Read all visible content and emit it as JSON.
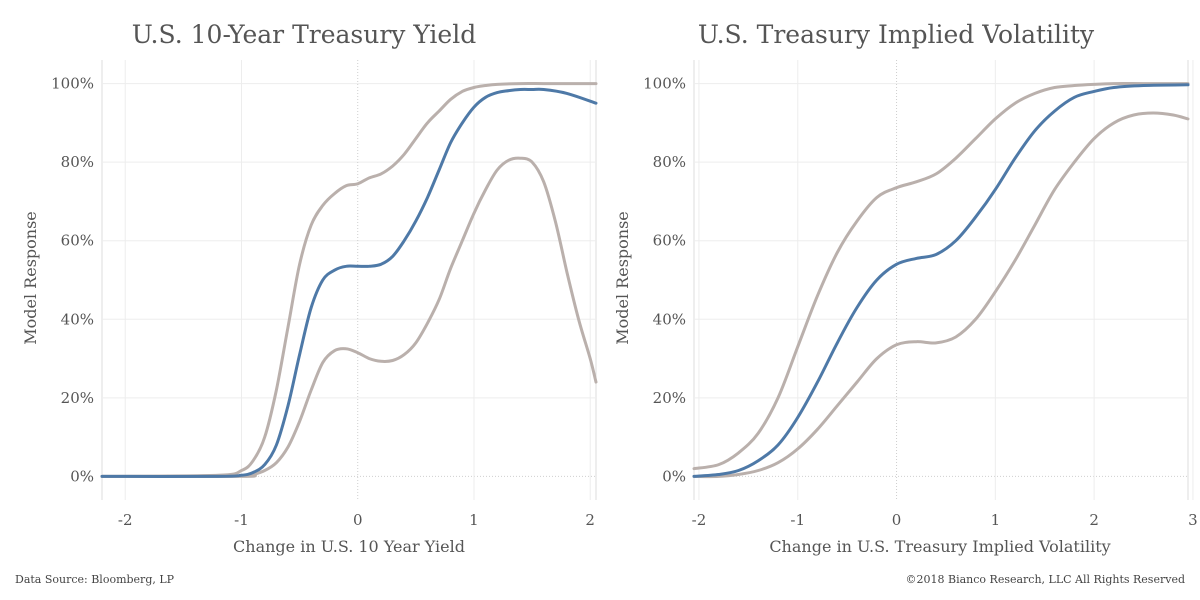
{
  "chart_data": [
    {
      "type": "line",
      "title": "U.S. 10-Year Treasury Yield",
      "xlabel": "Change in U.S. 10 Year Yield",
      "ylabel": "Model Response",
      "xlim": [
        -2.2,
        2.05
      ],
      "ylim": [
        -0.06,
        1.06
      ],
      "xticks": [
        -2,
        -1,
        0,
        1,
        2
      ],
      "xtick_labels": [
        "-2",
        "-1",
        "0",
        "1",
        "2"
      ],
      "yticks": [
        0,
        0.2,
        0.4,
        0.6,
        0.8,
        1.0
      ],
      "ytick_labels": [
        "0%",
        "20%",
        "40%",
        "60%",
        "80%",
        "100%"
      ],
      "grid": true,
      "series": [
        {
          "role": "upper",
          "color": "#bab0ac",
          "x": [
            -2.2,
            -1.2,
            -1.0,
            -0.9,
            -0.8,
            -0.7,
            -0.6,
            -0.5,
            -0.4,
            -0.3,
            -0.2,
            -0.1,
            0.0,
            0.1,
            0.2,
            0.3,
            0.4,
            0.5,
            0.6,
            0.7,
            0.8,
            0.9,
            1.0,
            1.1,
            1.2,
            1.4,
            1.6,
            1.8,
            2.05
          ],
          "y": [
            0.0,
            0.003,
            0.015,
            0.04,
            0.1,
            0.22,
            0.38,
            0.54,
            0.64,
            0.69,
            0.72,
            0.74,
            0.745,
            0.76,
            0.77,
            0.79,
            0.82,
            0.86,
            0.9,
            0.93,
            0.96,
            0.98,
            0.99,
            0.995,
            0.998,
            1.0,
            1.0,
            1.0,
            1.0
          ]
        },
        {
          "role": "median",
          "color": "#4e79a7",
          "x": [
            -2.2,
            -1.2,
            -1.0,
            -0.9,
            -0.8,
            -0.7,
            -0.6,
            -0.5,
            -0.4,
            -0.3,
            -0.2,
            -0.1,
            0.0,
            0.1,
            0.2,
            0.3,
            0.4,
            0.5,
            0.6,
            0.7,
            0.8,
            0.9,
            1.0,
            1.1,
            1.2,
            1.3,
            1.4,
            1.5,
            1.6,
            1.8,
            2.05
          ],
          "y": [
            0.0,
            0.0,
            0.003,
            0.01,
            0.03,
            0.08,
            0.18,
            0.31,
            0.43,
            0.5,
            0.525,
            0.535,
            0.535,
            0.535,
            0.54,
            0.56,
            0.6,
            0.65,
            0.71,
            0.78,
            0.85,
            0.9,
            0.94,
            0.965,
            0.977,
            0.982,
            0.985,
            0.985,
            0.985,
            0.975,
            0.95
          ]
        },
        {
          "role": "lower",
          "color": "#bab0ac",
          "x": [
            -2.2,
            -1.0,
            -0.9,
            -0.8,
            -0.7,
            -0.6,
            -0.5,
            -0.4,
            -0.3,
            -0.2,
            -0.1,
            0.0,
            0.1,
            0.2,
            0.3,
            0.4,
            0.5,
            0.6,
            0.7,
            0.8,
            0.9,
            1.0,
            1.1,
            1.2,
            1.3,
            1.4,
            1.5,
            1.6,
            1.7,
            1.8,
            1.9,
            2.0,
            2.05
          ],
          "y": [
            0.0,
            0.0,
            0.005,
            0.015,
            0.035,
            0.075,
            0.14,
            0.22,
            0.29,
            0.32,
            0.325,
            0.315,
            0.3,
            0.293,
            0.295,
            0.31,
            0.34,
            0.39,
            0.45,
            0.53,
            0.6,
            0.67,
            0.73,
            0.78,
            0.805,
            0.81,
            0.8,
            0.75,
            0.65,
            0.52,
            0.4,
            0.3,
            0.24
          ]
        }
      ]
    },
    {
      "type": "line",
      "title": "U.S. Treasury Implied Volatility",
      "xlabel": "Change in U.S. Treasury Implied Volatility",
      "ylabel": "Model Response",
      "xlim": [
        -2.05,
        2.95
      ],
      "ylim": [
        -0.06,
        1.06
      ],
      "xticks": [
        -2,
        -1,
        0,
        1,
        2,
        3
      ],
      "xtick_labels": [
        "-2",
        "-1",
        "0",
        "1",
        "2",
        "3"
      ],
      "yticks": [
        0,
        0.2,
        0.4,
        0.6,
        0.8,
        1.0
      ],
      "ytick_labels": [
        "0%",
        "20%",
        "40%",
        "60%",
        "80%",
        "100%"
      ],
      "grid": true,
      "series": [
        {
          "role": "upper",
          "color": "#bab0ac",
          "x": [
            -2.05,
            -1.8,
            -1.6,
            -1.4,
            -1.2,
            -1.0,
            -0.8,
            -0.6,
            -0.4,
            -0.2,
            0.0,
            0.2,
            0.4,
            0.6,
            0.8,
            1.0,
            1.2,
            1.4,
            1.6,
            1.8,
            2.0,
            2.2,
            2.5,
            2.95
          ],
          "y": [
            0.02,
            0.03,
            0.06,
            0.11,
            0.2,
            0.33,
            0.46,
            0.57,
            0.65,
            0.71,
            0.735,
            0.75,
            0.77,
            0.81,
            0.86,
            0.91,
            0.95,
            0.975,
            0.99,
            0.995,
            0.998,
            1.0,
            1.0,
            1.0
          ]
        },
        {
          "role": "median",
          "color": "#4e79a7",
          "x": [
            -2.05,
            -1.8,
            -1.6,
            -1.4,
            -1.2,
            -1.0,
            -0.8,
            -0.6,
            -0.4,
            -0.2,
            0.0,
            0.2,
            0.4,
            0.6,
            0.8,
            1.0,
            1.2,
            1.4,
            1.6,
            1.8,
            2.0,
            2.2,
            2.5,
            2.95
          ],
          "y": [
            0.0,
            0.005,
            0.015,
            0.04,
            0.08,
            0.15,
            0.24,
            0.34,
            0.43,
            0.5,
            0.54,
            0.555,
            0.565,
            0.6,
            0.66,
            0.73,
            0.81,
            0.88,
            0.93,
            0.965,
            0.98,
            0.99,
            0.995,
            0.997
          ]
        },
        {
          "role": "lower",
          "color": "#bab0ac",
          "x": [
            -2.05,
            -1.8,
            -1.6,
            -1.4,
            -1.2,
            -1.0,
            -0.8,
            -0.6,
            -0.4,
            -0.2,
            0.0,
            0.2,
            0.4,
            0.6,
            0.8,
            1.0,
            1.2,
            1.4,
            1.6,
            1.8,
            2.0,
            2.2,
            2.4,
            2.6,
            2.8,
            2.95
          ],
          "y": [
            0.0,
            0.0,
            0.005,
            0.015,
            0.035,
            0.07,
            0.12,
            0.18,
            0.24,
            0.3,
            0.335,
            0.343,
            0.34,
            0.355,
            0.4,
            0.47,
            0.55,
            0.64,
            0.73,
            0.8,
            0.86,
            0.9,
            0.92,
            0.925,
            0.92,
            0.91
          ]
        }
      ]
    }
  ],
  "footer": {
    "source": "Data Source: Bloomberg, LP",
    "copyright": "©2018 Bianco Research, LLC  All Rights Reserved"
  }
}
